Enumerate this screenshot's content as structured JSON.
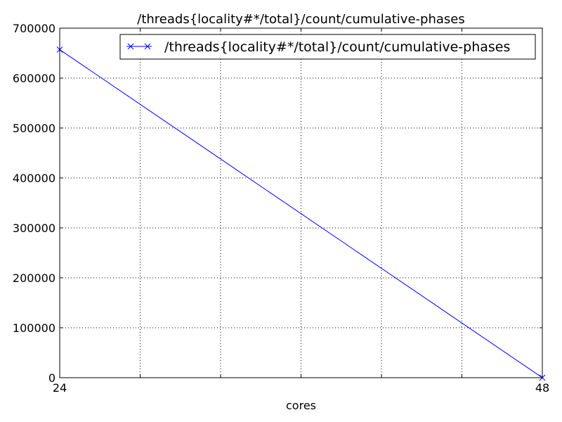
{
  "chart_data": {
    "type": "line",
    "title": "/threads{locality#*/total}/count/cumulative-phases",
    "xlabel": "cores",
    "ylabel": "",
    "xlim": [
      24,
      48
    ],
    "ylim": [
      0,
      700000
    ],
    "x_ticks": [
      24,
      48
    ],
    "x_tick_labels": [
      "24",
      "48"
    ],
    "y_ticks": [
      0,
      100000,
      200000,
      300000,
      400000,
      500000,
      600000,
      700000
    ],
    "y_tick_labels": [
      "0",
      "100000",
      "200000",
      "300000",
      "400000",
      "500000",
      "600000",
      "700000"
    ],
    "x_grid_values": [
      24,
      28,
      32,
      36,
      40,
      44,
      48
    ],
    "grid": true,
    "legend_position": "top-right",
    "series": [
      {
        "name": "/threads{locality#*/total}/count/cumulative-phases",
        "color": "#0000ff",
        "marker": "x",
        "x": [
          24,
          48
        ],
        "y": [
          657000,
          0
        ]
      }
    ]
  }
}
